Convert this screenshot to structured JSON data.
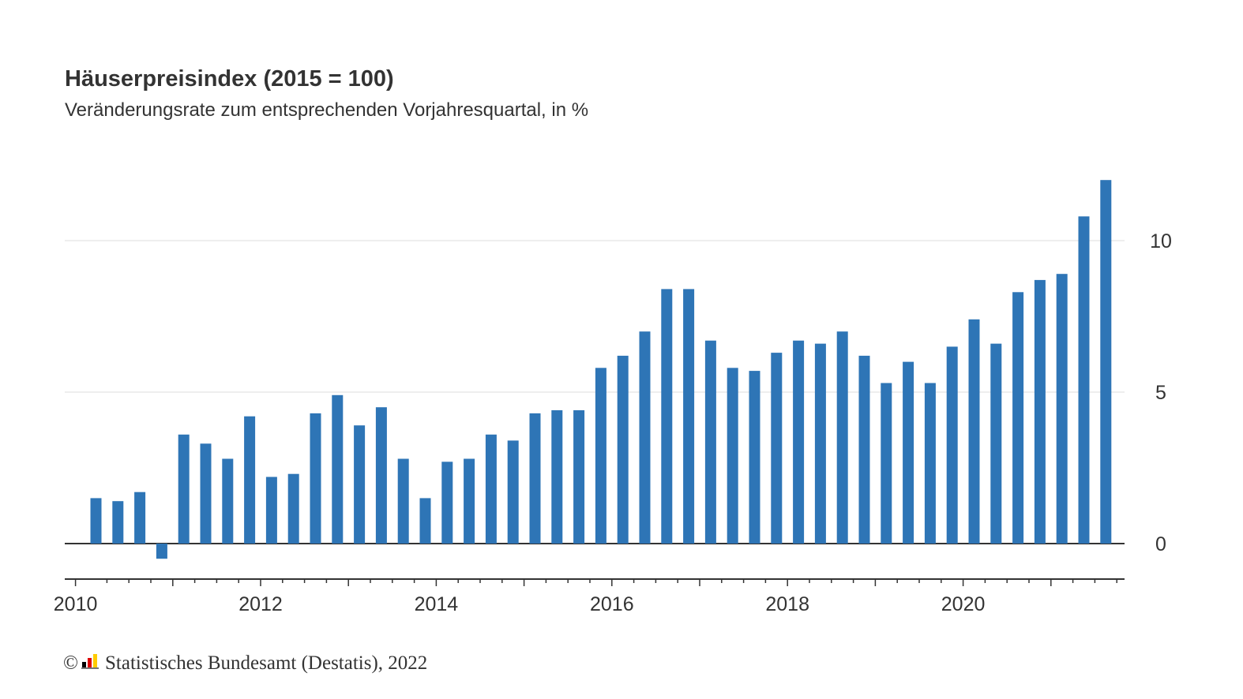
{
  "chart_data": {
    "type": "bar",
    "title": "Häuserpreisindex (2015 = 100)",
    "subtitle": "Veränderungsrate zum entsprechenden Vorjahresquartal, in %",
    "xlabel": "",
    "ylabel": "",
    "ylim": [
      -1.1,
      12
    ],
    "yticks": [
      0,
      5,
      10
    ],
    "xticks": [
      "2010",
      "2012",
      "2014",
      "2016",
      "2018",
      "2020"
    ],
    "grid": true,
    "series": [
      {
        "color": "#2e75b6",
        "values": [
          {
            "x": "2010-Q1",
            "y": 1.5
          },
          {
            "x": "2010-Q2",
            "y": 1.4
          },
          {
            "x": "2010-Q3",
            "y": 1.7
          },
          {
            "x": "2010-Q4",
            "y": -0.5
          },
          {
            "x": "2011-Q1",
            "y": 3.6
          },
          {
            "x": "2011-Q2",
            "y": 3.3
          },
          {
            "x": "2011-Q3",
            "y": 2.8
          },
          {
            "x": "2011-Q4",
            "y": 4.2
          },
          {
            "x": "2012-Q1",
            "y": 2.2
          },
          {
            "x": "2012-Q2",
            "y": 2.3
          },
          {
            "x": "2012-Q3",
            "y": 4.3
          },
          {
            "x": "2012-Q4",
            "y": 4.9
          },
          {
            "x": "2013-Q1",
            "y": 3.9
          },
          {
            "x": "2013-Q2",
            "y": 4.5
          },
          {
            "x": "2013-Q3",
            "y": 2.8
          },
          {
            "x": "2013-Q4",
            "y": 1.5
          },
          {
            "x": "2014-Q1",
            "y": 2.7
          },
          {
            "x": "2014-Q2",
            "y": 2.8
          },
          {
            "x": "2014-Q3",
            "y": 3.6
          },
          {
            "x": "2014-Q4",
            "y": 3.4
          },
          {
            "x": "2015-Q1",
            "y": 4.3
          },
          {
            "x": "2015-Q2",
            "y": 4.4
          },
          {
            "x": "2015-Q3",
            "y": 4.4
          },
          {
            "x": "2015-Q4",
            "y": 5.8
          },
          {
            "x": "2016-Q1",
            "y": 6.2
          },
          {
            "x": "2016-Q2",
            "y": 7.0
          },
          {
            "x": "2016-Q3",
            "y": 8.4
          },
          {
            "x": "2016-Q4",
            "y": 8.4
          },
          {
            "x": "2017-Q1",
            "y": 6.7
          },
          {
            "x": "2017-Q2",
            "y": 5.8
          },
          {
            "x": "2017-Q3",
            "y": 5.7
          },
          {
            "x": "2017-Q4",
            "y": 6.3
          },
          {
            "x": "2018-Q1",
            "y": 6.7
          },
          {
            "x": "2018-Q2",
            "y": 6.6
          },
          {
            "x": "2018-Q3",
            "y": 7.0
          },
          {
            "x": "2018-Q4",
            "y": 6.2
          },
          {
            "x": "2019-Q1",
            "y": 5.3
          },
          {
            "x": "2019-Q2",
            "y": 6.0
          },
          {
            "x": "2019-Q3",
            "y": 5.3
          },
          {
            "x": "2019-Q4",
            "y": 6.5
          },
          {
            "x": "2020-Q1",
            "y": 7.4
          },
          {
            "x": "2020-Q2",
            "y": 6.6
          },
          {
            "x": "2020-Q3",
            "y": 8.3
          },
          {
            "x": "2020-Q4",
            "y": 8.7
          },
          {
            "x": "2021-Q1",
            "y": 8.9
          },
          {
            "x": "2021-Q2",
            "y": 10.8
          },
          {
            "x": "2021-Q3",
            "y": 12.0
          }
        ]
      }
    ]
  },
  "footer": {
    "copyright_symbol": "©",
    "source_text": "Statistisches Bundesamt (Destatis), 2022"
  }
}
